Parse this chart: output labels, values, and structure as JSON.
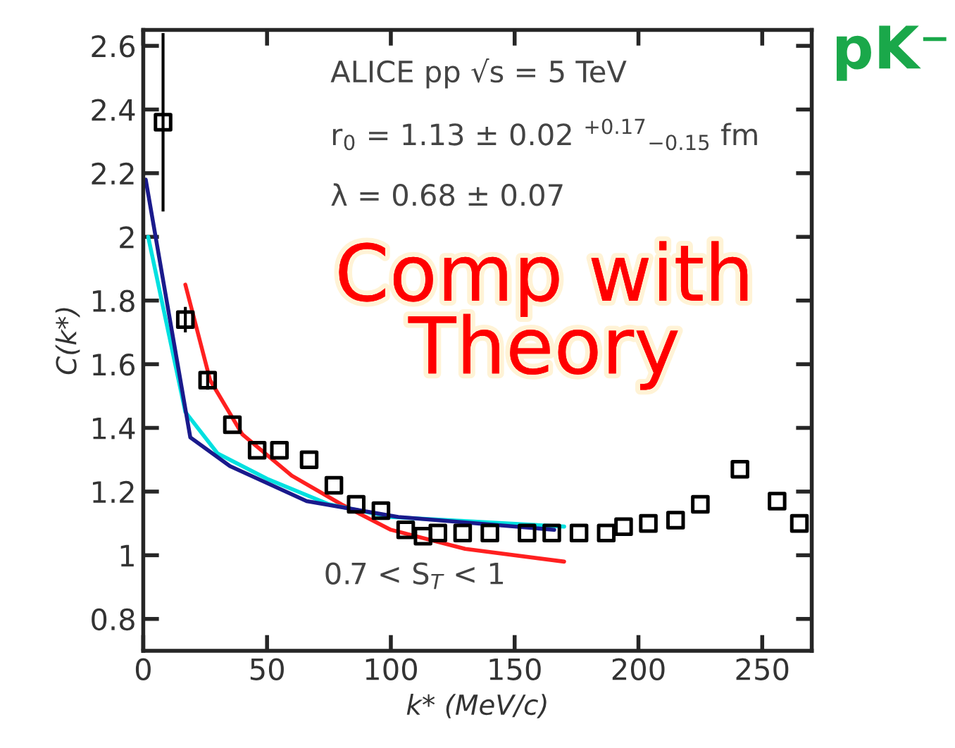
{
  "chart_data": {
    "type": "scatter",
    "xlabel": "k* (MeV/c)",
    "ylabel": "C(k*)",
    "xlim": [
      0,
      270
    ],
    "xticks": [
      0,
      50,
      100,
      150,
      200,
      250
    ],
    "ylim": [
      0.7,
      2.65
    ],
    "yticks": [
      0.8,
      {
        "value": 1.0,
        "label": "1"
      },
      1.2,
      1.4,
      1.6,
      1.8,
      {
        "value": 2.0,
        "label": "2"
      },
      2.2,
      2.4,
      2.6
    ],
    "grid": false,
    "series": [
      {
        "type": "line",
        "color": "#ff2020",
        "x": [
          17,
          27,
          40,
          60,
          80,
          100,
          130,
          170
        ],
        "values": [
          1.85,
          1.55,
          1.38,
          1.25,
          1.16,
          1.08,
          1.02,
          0.98
        ]
      },
      {
        "type": "line",
        "color": "#00e0e0",
        "x": [
          2,
          17,
          30,
          50,
          75,
          100,
          170
        ],
        "values": [
          2.0,
          1.45,
          1.32,
          1.24,
          1.16,
          1.12,
          1.09
        ]
      },
      {
        "type": "line",
        "color": "#1a1a8c",
        "x": [
          1,
          19,
          35,
          66,
          103,
          166
        ],
        "values": [
          2.18,
          1.37,
          1.28,
          1.17,
          1.12,
          1.08
        ]
      },
      {
        "color": "#000000",
        "marker": "square",
        "x": [
          8,
          17,
          26,
          36,
          46,
          55,
          67,
          77,
          86,
          96,
          106,
          113,
          119,
          129,
          140,
          155,
          165,
          176,
          187,
          194,
          204,
          215,
          225,
          241,
          256,
          265
        ],
        "values": [
          2.36,
          1.74,
          1.55,
          1.41,
          1.33,
          1.33,
          1.3,
          1.22,
          1.16,
          1.14,
          1.08,
          1.06,
          1.07,
          1.07,
          1.07,
          1.07,
          1.07,
          1.07,
          1.07,
          1.09,
          1.1,
          1.11,
          1.16,
          1.27,
          1.17,
          1.1
        ],
        "errors": [
          0.28,
          0.04,
          0.03,
          null,
          null,
          null,
          null,
          null,
          null,
          null,
          null,
          null,
          null,
          null,
          null,
          null,
          null,
          null,
          null,
          null,
          null,
          null,
          null,
          null,
          null,
          null
        ]
      }
    ],
    "annotations": [
      "ALICE pp √s = 5 TeV",
      "r$_{0}$ = 1.13 ± 0.02 $^{+0.17}$$_{−0.15}$ fm",
      "λ = 0.68 ± 0.07",
      "0.7 < S$_{T}$ < 1",
      "Comp with\nTheory",
      "pK⁻"
    ]
  }
}
